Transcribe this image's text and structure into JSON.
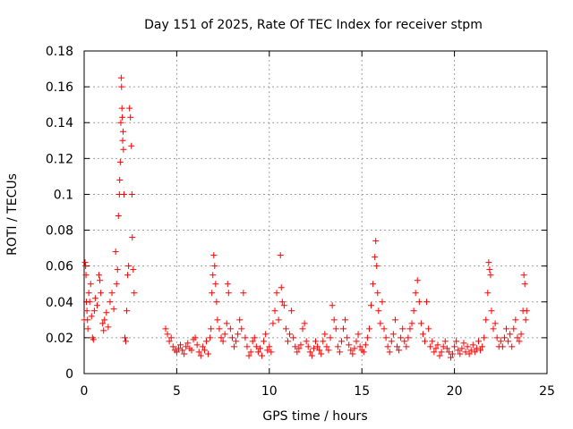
{
  "chart_data": {
    "type": "scatter",
    "title": "Day 151 of 2025, Rate Of TEC Index for receiver stpm",
    "xlabel": "GPS time / hours",
    "ylabel": "ROTI / TECUs",
    "xlim": [
      0,
      25
    ],
    "ylim": [
      0,
      0.18
    ],
    "x_ticks": [
      0,
      5,
      10,
      15,
      20,
      25
    ],
    "x_tick_labels": [
      "0",
      "5",
      "10",
      "15",
      "20",
      "25"
    ],
    "y_ticks": [
      0,
      0.02,
      0.04,
      0.06,
      0.08,
      0.1,
      0.12,
      0.14,
      0.16,
      0.18
    ],
    "y_tick_labels": [
      "0",
      "0.02",
      "0.04",
      "0.06",
      "0.08",
      "0.1",
      "0.12",
      "0.14",
      "0.16",
      "0.18"
    ],
    "grid": true,
    "marker": "+",
    "colors": {
      "series": "#ff0000",
      "grid": "#a0a0a0",
      "axis": "#000000"
    },
    "series": [
      {
        "name": "ROTI",
        "points": [
          [
            0.0,
            0.03
          ],
          [
            0.05,
            0.062
          ],
          [
            0.08,
            0.06
          ],
          [
            0.1,
            0.055
          ],
          [
            0.12,
            0.04
          ],
          [
            0.15,
            0.035
          ],
          [
            0.18,
            0.03
          ],
          [
            0.2,
            0.025
          ],
          [
            0.25,
            0.045
          ],
          [
            0.3,
            0.04
          ],
          [
            0.35,
            0.05
          ],
          [
            0.4,
            0.032
          ],
          [
            0.45,
            0.02
          ],
          [
            0.5,
            0.019
          ],
          [
            0.55,
            0.035
          ],
          [
            0.6,
            0.042
          ],
          [
            0.7,
            0.038
          ],
          [
            0.8,
            0.055
          ],
          [
            0.85,
            0.052
          ],
          [
            0.9,
            0.045
          ],
          [
            1.0,
            0.028
          ],
          [
            1.05,
            0.024
          ],
          [
            1.1,
            0.03
          ],
          [
            1.2,
            0.034
          ],
          [
            1.3,
            0.026
          ],
          [
            1.4,
            0.04
          ],
          [
            1.5,
            0.045
          ],
          [
            1.6,
            0.036
          ],
          [
            1.7,
            0.068
          ],
          [
            1.75,
            0.05
          ],
          [
            1.8,
            0.058
          ],
          [
            1.85,
            0.088
          ],
          [
            1.9,
            0.1
          ],
          [
            1.92,
            0.108
          ],
          [
            1.95,
            0.118
          ],
          [
            1.98,
            0.14
          ],
          [
            2.0,
            0.165
          ],
          [
            2.02,
            0.16
          ],
          [
            2.04,
            0.148
          ],
          [
            2.06,
            0.143
          ],
          [
            2.08,
            0.13
          ],
          [
            2.1,
            0.135
          ],
          [
            2.12,
            0.125
          ],
          [
            2.15,
            0.1
          ],
          [
            2.2,
            0.02
          ],
          [
            2.25,
            0.018
          ],
          [
            2.3,
            0.035
          ],
          [
            2.35,
            0.055
          ],
          [
            2.4,
            0.06
          ],
          [
            2.45,
            0.148
          ],
          [
            2.5,
            0.143
          ],
          [
            2.55,
            0.127
          ],
          [
            2.58,
            0.1
          ],
          [
            2.6,
            0.076
          ],
          [
            2.65,
            0.058
          ],
          [
            2.7,
            0.045
          ],
          [
            4.4,
            0.025
          ],
          [
            4.5,
            0.022
          ],
          [
            4.6,
            0.018
          ],
          [
            4.7,
            0.02
          ],
          [
            4.8,
            0.015
          ],
          [
            4.9,
            0.013
          ],
          [
            5.0,
            0.012
          ],
          [
            5.1,
            0.014
          ],
          [
            5.2,
            0.016
          ],
          [
            5.3,
            0.013
          ],
          [
            5.4,
            0.011
          ],
          [
            5.5,
            0.015
          ],
          [
            5.6,
            0.017
          ],
          [
            5.7,
            0.014
          ],
          [
            5.8,
            0.013
          ],
          [
            5.9,
            0.019
          ],
          [
            6.0,
            0.02
          ],
          [
            6.1,
            0.016
          ],
          [
            6.2,
            0.012
          ],
          [
            6.3,
            0.01
          ],
          [
            6.4,
            0.015
          ],
          [
            6.5,
            0.013
          ],
          [
            6.6,
            0.018
          ],
          [
            6.7,
            0.011
          ],
          [
            6.8,
            0.02
          ],
          [
            6.85,
            0.025
          ],
          [
            6.9,
            0.045
          ],
          [
            6.95,
            0.055
          ],
          [
            7.0,
            0.066
          ],
          [
            7.05,
            0.06
          ],
          [
            7.1,
            0.05
          ],
          [
            7.15,
            0.04
          ],
          [
            7.2,
            0.03
          ],
          [
            7.3,
            0.025
          ],
          [
            7.4,
            0.02
          ],
          [
            7.5,
            0.018
          ],
          [
            7.6,
            0.022
          ],
          [
            7.7,
            0.028
          ],
          [
            7.75,
            0.05
          ],
          [
            7.8,
            0.045
          ],
          [
            7.9,
            0.025
          ],
          [
            8.0,
            0.02
          ],
          [
            8.1,
            0.015
          ],
          [
            8.2,
            0.018
          ],
          [
            8.3,
            0.022
          ],
          [
            8.4,
            0.03
          ],
          [
            8.5,
            0.025
          ],
          [
            8.6,
            0.045
          ],
          [
            8.7,
            0.02
          ],
          [
            8.8,
            0.015
          ],
          [
            8.9,
            0.01
          ],
          [
            9.0,
            0.012
          ],
          [
            9.1,
            0.018
          ],
          [
            9.2,
            0.02
          ],
          [
            9.3,
            0.015
          ],
          [
            9.4,
            0.012
          ],
          [
            9.5,
            0.014
          ],
          [
            9.6,
            0.01
          ],
          [
            9.7,
            0.018
          ],
          [
            9.8,
            0.022
          ],
          [
            9.9,
            0.013
          ],
          [
            10.0,
            0.015
          ],
          [
            10.1,
            0.012
          ],
          [
            10.2,
            0.028
          ],
          [
            10.3,
            0.035
          ],
          [
            10.4,
            0.045
          ],
          [
            10.5,
            0.03
          ],
          [
            10.6,
            0.066
          ],
          [
            10.65,
            0.048
          ],
          [
            10.7,
            0.04
          ],
          [
            10.8,
            0.038
          ],
          [
            10.9,
            0.025
          ],
          [
            11.0,
            0.018
          ],
          [
            11.1,
            0.022
          ],
          [
            11.2,
            0.035
          ],
          [
            11.3,
            0.02
          ],
          [
            11.4,
            0.015
          ],
          [
            11.5,
            0.012
          ],
          [
            11.6,
            0.014
          ],
          [
            11.7,
            0.016
          ],
          [
            11.8,
            0.025
          ],
          [
            11.9,
            0.028
          ],
          [
            12.0,
            0.018
          ],
          [
            12.1,
            0.015
          ],
          [
            12.2,
            0.012
          ],
          [
            12.3,
            0.01
          ],
          [
            12.4,
            0.014
          ],
          [
            12.5,
            0.018
          ],
          [
            12.6,
            0.015
          ],
          [
            12.7,
            0.013
          ],
          [
            12.8,
            0.011
          ],
          [
            12.9,
            0.018
          ],
          [
            13.0,
            0.022
          ],
          [
            13.1,
            0.015
          ],
          [
            13.2,
            0.013
          ],
          [
            13.3,
            0.02
          ],
          [
            13.4,
            0.038
          ],
          [
            13.5,
            0.03
          ],
          [
            13.6,
            0.025
          ],
          [
            13.7,
            0.015
          ],
          [
            13.8,
            0.012
          ],
          [
            13.9,
            0.018
          ],
          [
            14.0,
            0.025
          ],
          [
            14.1,
            0.03
          ],
          [
            14.2,
            0.02
          ],
          [
            14.3,
            0.016
          ],
          [
            14.4,
            0.013
          ],
          [
            14.5,
            0.011
          ],
          [
            14.6,
            0.014
          ],
          [
            14.7,
            0.018
          ],
          [
            14.8,
            0.022
          ],
          [
            14.9,
            0.015
          ],
          [
            15.0,
            0.013
          ],
          [
            15.1,
            0.012
          ],
          [
            15.2,
            0.016
          ],
          [
            15.3,
            0.02
          ],
          [
            15.4,
            0.025
          ],
          [
            15.5,
            0.038
          ],
          [
            15.6,
            0.05
          ],
          [
            15.7,
            0.065
          ],
          [
            15.75,
            0.074
          ],
          [
            15.8,
            0.06
          ],
          [
            15.85,
            0.045
          ],
          [
            15.9,
            0.035
          ],
          [
            16.0,
            0.028
          ],
          [
            16.1,
            0.04
          ],
          [
            16.2,
            0.025
          ],
          [
            16.3,
            0.02
          ],
          [
            16.4,
            0.015
          ],
          [
            16.5,
            0.012
          ],
          [
            16.6,
            0.018
          ],
          [
            16.7,
            0.022
          ],
          [
            16.8,
            0.03
          ],
          [
            16.9,
            0.015
          ],
          [
            17.0,
            0.013
          ],
          [
            17.1,
            0.02
          ],
          [
            17.2,
            0.025
          ],
          [
            17.3,
            0.018
          ],
          [
            17.4,
            0.015
          ],
          [
            17.5,
            0.02
          ],
          [
            17.6,
            0.025
          ],
          [
            17.7,
            0.028
          ],
          [
            17.8,
            0.035
          ],
          [
            17.9,
            0.045
          ],
          [
            18.0,
            0.052
          ],
          [
            18.1,
            0.04
          ],
          [
            18.2,
            0.028
          ],
          [
            18.3,
            0.022
          ],
          [
            18.4,
            0.018
          ],
          [
            18.5,
            0.04
          ],
          [
            18.6,
            0.025
          ],
          [
            18.7,
            0.015
          ],
          [
            18.8,
            0.018
          ],
          [
            18.9,
            0.012
          ],
          [
            19.0,
            0.014
          ],
          [
            19.1,
            0.016
          ],
          [
            19.2,
            0.01
          ],
          [
            19.3,
            0.012
          ],
          [
            19.4,
            0.015
          ],
          [
            19.5,
            0.018
          ],
          [
            19.6,
            0.014
          ],
          [
            19.7,
            0.012
          ],
          [
            19.8,
            0.009
          ],
          [
            19.9,
            0.011
          ],
          [
            20.0,
            0.015
          ],
          [
            20.1,
            0.018
          ],
          [
            20.2,
            0.013
          ],
          [
            20.3,
            0.011
          ],
          [
            20.4,
            0.014
          ],
          [
            20.5,
            0.017
          ],
          [
            20.6,
            0.012
          ],
          [
            20.7,
            0.015
          ],
          [
            20.8,
            0.011
          ],
          [
            20.9,
            0.013
          ],
          [
            21.0,
            0.016
          ],
          [
            21.1,
            0.012
          ],
          [
            21.2,
            0.014
          ],
          [
            21.3,
            0.018
          ],
          [
            21.4,
            0.013
          ],
          [
            21.5,
            0.015
          ],
          [
            21.6,
            0.02
          ],
          [
            21.7,
            0.03
          ],
          [
            21.8,
            0.045
          ],
          [
            21.85,
            0.062
          ],
          [
            21.9,
            0.058
          ],
          [
            21.95,
            0.055
          ],
          [
            22.0,
            0.035
          ],
          [
            22.1,
            0.025
          ],
          [
            22.2,
            0.028
          ],
          [
            22.3,
            0.02
          ],
          [
            22.4,
            0.015
          ],
          [
            22.5,
            0.018
          ],
          [
            22.6,
            0.015
          ],
          [
            22.7,
            0.02
          ],
          [
            22.8,
            0.025
          ],
          [
            22.9,
            0.018
          ],
          [
            23.0,
            0.022
          ],
          [
            23.1,
            0.015
          ],
          [
            23.2,
            0.025
          ],
          [
            23.3,
            0.03
          ],
          [
            23.4,
            0.02
          ],
          [
            23.5,
            0.018
          ],
          [
            23.6,
            0.022
          ],
          [
            23.7,
            0.035
          ],
          [
            23.75,
            0.055
          ],
          [
            23.8,
            0.05
          ],
          [
            23.85,
            0.03
          ],
          [
            23.9,
            0.035
          ]
        ]
      }
    ]
  }
}
